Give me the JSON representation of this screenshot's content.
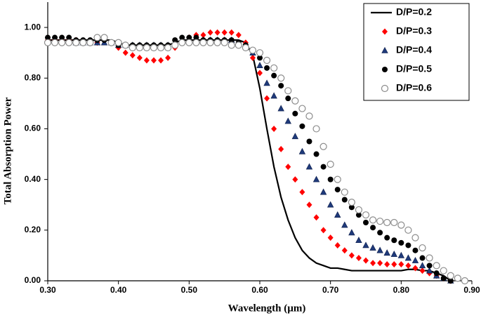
{
  "chart_data": {
    "type": "line",
    "xlabel": "Wavelength (µm)",
    "ylabel": "Total Absorption Power",
    "x": [
      0.3,
      0.31,
      0.32,
      0.33,
      0.34,
      0.35,
      0.36,
      0.37,
      0.38,
      0.39,
      0.4,
      0.41,
      0.42,
      0.43,
      0.44,
      0.45,
      0.46,
      0.47,
      0.48,
      0.49,
      0.5,
      0.51,
      0.52,
      0.53,
      0.54,
      0.55,
      0.56,
      0.57,
      0.58,
      0.59,
      0.6,
      0.61,
      0.62,
      0.63,
      0.64,
      0.65,
      0.66,
      0.67,
      0.68,
      0.69,
      0.7,
      0.71,
      0.72,
      0.73,
      0.74,
      0.75,
      0.76,
      0.77,
      0.78,
      0.79,
      0.8,
      0.81,
      0.82,
      0.83,
      0.84,
      0.85,
      0.86,
      0.87,
      0.88,
      0.89,
      0.9
    ],
    "series": [
      {
        "name": "D/P=0.2",
        "color": "#000000",
        "marker": "none",
        "values": [
          0.95,
          0.95,
          0.95,
          0.95,
          0.95,
          0.95,
          0.95,
          0.95,
          0.95,
          0.95,
          0.94,
          0.93,
          0.93,
          0.93,
          0.93,
          0.93,
          0.93,
          0.93,
          0.94,
          0.95,
          0.95,
          0.95,
          0.95,
          0.95,
          0.95,
          0.95,
          0.95,
          0.95,
          0.94,
          0.89,
          0.76,
          0.6,
          0.45,
          0.33,
          0.24,
          0.17,
          0.12,
          0.09,
          0.07,
          0.06,
          0.05,
          0.05,
          0.045,
          0.04,
          0.04,
          0.04,
          0.04,
          0.04,
          0.04,
          0.04,
          0.04,
          0.045,
          0.045,
          0.04,
          0.04,
          0.03,
          0.02,
          0.0,
          null,
          null,
          null
        ]
      },
      {
        "name": "D/P=0.3",
        "color": "#ff0000",
        "marker": "diamond",
        "values": [
          0.95,
          0.95,
          0.95,
          0.95,
          0.95,
          0.94,
          0.94,
          0.94,
          0.95,
          0.94,
          0.92,
          0.9,
          0.89,
          0.88,
          0.87,
          0.87,
          0.87,
          0.88,
          0.92,
          0.94,
          0.96,
          0.97,
          0.97,
          0.98,
          0.98,
          0.98,
          0.98,
          0.97,
          0.94,
          0.88,
          0.82,
          0.72,
          0.6,
          0.52,
          0.45,
          0.4,
          0.35,
          0.3,
          0.25,
          0.2,
          0.17,
          0.14,
          0.12,
          0.1,
          0.09,
          0.08,
          0.07,
          0.07,
          0.065,
          0.065,
          0.065,
          0.06,
          0.05,
          0.04,
          0.03,
          0.02,
          0.01,
          0.0,
          null,
          null,
          null
        ]
      },
      {
        "name": "D/P=0.4",
        "color": "#1f3a7a",
        "marker": "triangle",
        "values": [
          0.95,
          0.95,
          0.95,
          0.95,
          0.94,
          0.94,
          0.94,
          0.94,
          0.94,
          0.94,
          0.93,
          0.93,
          0.93,
          0.93,
          0.93,
          0.93,
          0.93,
          0.93,
          0.94,
          0.95,
          0.95,
          0.95,
          0.95,
          0.95,
          0.95,
          0.95,
          0.95,
          0.94,
          0.93,
          0.9,
          0.85,
          0.78,
          0.73,
          0.68,
          0.63,
          0.57,
          0.51,
          0.45,
          0.4,
          0.35,
          0.3,
          0.26,
          0.22,
          0.19,
          0.16,
          0.14,
          0.13,
          0.12,
          0.11,
          0.105,
          0.1,
          0.09,
          0.08,
          0.06,
          0.04,
          0.02,
          0.01,
          0.0,
          null,
          null,
          null
        ]
      },
      {
        "name": "D/P=0.5",
        "color": "#000000",
        "marker": "circle",
        "values": [
          0.96,
          0.96,
          0.96,
          0.96,
          0.95,
          0.95,
          0.95,
          0.95,
          0.95,
          0.94,
          0.93,
          0.93,
          0.93,
          0.93,
          0.93,
          0.93,
          0.93,
          0.93,
          0.95,
          0.96,
          0.96,
          0.96,
          0.95,
          0.95,
          0.95,
          0.95,
          0.95,
          0.94,
          0.93,
          0.91,
          0.88,
          0.84,
          0.81,
          0.77,
          0.72,
          0.66,
          0.61,
          0.55,
          0.5,
          0.45,
          0.4,
          0.36,
          0.32,
          0.29,
          0.26,
          0.23,
          0.21,
          0.19,
          0.17,
          0.16,
          0.15,
          0.14,
          0.12,
          0.09,
          0.06,
          0.03,
          0.01,
          0.0,
          null,
          null,
          null
        ]
      },
      {
        "name": "D/P=0.6",
        "color": "#8c8c8c",
        "marker": "open-circle",
        "values": [
          0.94,
          0.94,
          0.94,
          0.94,
          0.94,
          0.94,
          0.94,
          0.96,
          0.96,
          0.94,
          0.94,
          0.93,
          0.92,
          0.92,
          0.92,
          0.92,
          0.92,
          0.92,
          0.93,
          0.94,
          0.94,
          0.94,
          0.94,
          0.94,
          0.94,
          0.94,
          0.93,
          0.93,
          0.92,
          0.91,
          0.9,
          0.87,
          0.84,
          0.8,
          0.75,
          0.71,
          0.68,
          0.65,
          0.6,
          0.53,
          0.46,
          0.4,
          0.35,
          0.31,
          0.28,
          0.26,
          0.24,
          0.235,
          0.23,
          0.23,
          0.22,
          0.2,
          0.17,
          0.13,
          0.09,
          0.06,
          0.04,
          0.02,
          0.01,
          0.0,
          null
        ]
      }
    ],
    "xlim": [
      0.3,
      0.9
    ],
    "xticks": [
      {
        "value": 0.3,
        "label": "0.30"
      },
      {
        "value": 0.4,
        "label": "0.40"
      },
      {
        "value": 0.5,
        "label": "0.50"
      },
      {
        "value": 0.6,
        "label": "0.60"
      },
      {
        "value": 0.7,
        "label": "0.70"
      },
      {
        "value": 0.8,
        "label": "0.80"
      },
      {
        "value": 0.9,
        "label": "0.90"
      }
    ],
    "ylim": [
      0,
      1.1
    ],
    "yticks": [
      {
        "value": 0,
        "label": "0.00"
      },
      {
        "value": 0.2,
        "label": "0.20"
      },
      {
        "value": 0.4,
        "label": "0.40"
      },
      {
        "value": 0.6,
        "label": "0.60"
      },
      {
        "value": 0.8,
        "label": "0.80"
      },
      {
        "value": 1,
        "label": "1.00"
      }
    ],
    "grid": false,
    "legend": "upper right"
  }
}
